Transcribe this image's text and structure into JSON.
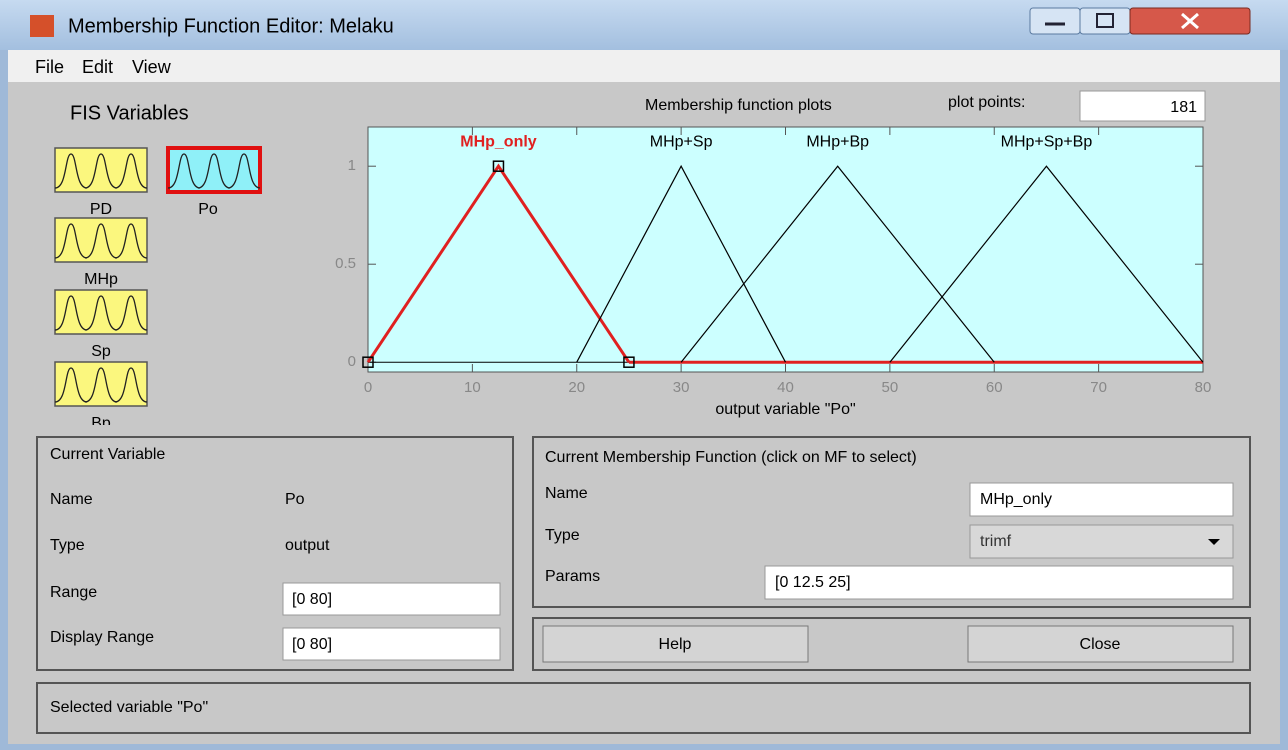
{
  "window": {
    "title": "Membership Function Editor: Melaku"
  },
  "menu": [
    "File",
    "Edit",
    "View"
  ],
  "fis_variables": {
    "title": "FIS Variables",
    "variables": [
      "PD",
      "Po",
      "MHp",
      "Sp",
      "Bp"
    ],
    "selected": 1
  },
  "plot_header": {
    "title": "Membership function plots",
    "plot_points_label": "plot points:",
    "plot_points": 181
  },
  "chart_data": {
    "type": "line",
    "xlabel": "output variable \"Po\"",
    "xlim": [
      0,
      80
    ],
    "ylim": [
      -0.05,
      1.2
    ],
    "xticks": [
      0,
      10,
      20,
      30,
      40,
      50,
      60,
      70,
      80
    ],
    "yticks": [
      0,
      0.5,
      1
    ],
    "grid": false,
    "selected_series": 0,
    "series": [
      {
        "name": "MHp_only",
        "color": "#e02020",
        "x": [
          0,
          12.5,
          25
        ],
        "values": [
          0,
          1,
          0
        ]
      },
      {
        "name": "MHp+Sp",
        "color": "#000000",
        "x": [
          20,
          30,
          40
        ],
        "values": [
          0,
          1,
          0
        ]
      },
      {
        "name": "MHp+Bp",
        "color": "#000000",
        "x": [
          30,
          45,
          60
        ],
        "values": [
          0,
          1,
          0
        ]
      },
      {
        "name": "MHp+Sp+Bp",
        "color": "#000000",
        "x": [
          50,
          65,
          80
        ],
        "values": [
          0,
          1,
          0
        ]
      }
    ]
  },
  "current_variable": {
    "title": "Current Variable",
    "fields": [
      {
        "label": "Name",
        "value": "Po"
      },
      {
        "label": "Type",
        "value": "output"
      },
      {
        "label": "Range",
        "value": "[0 80]"
      },
      {
        "label": "Display Range",
        "value": "[0 80]"
      }
    ]
  },
  "current_mf": {
    "title": "Current Membership Function (click on MF to select)",
    "fields": [
      {
        "label": "Name",
        "value": "MHp_only"
      },
      {
        "label": "Type",
        "value": "trimf"
      },
      {
        "label": "Params",
        "value": "[0 12.5 25]"
      }
    ]
  },
  "buttons": [
    "Help",
    "Close"
  ],
  "status": "Selected variable \"Po\""
}
